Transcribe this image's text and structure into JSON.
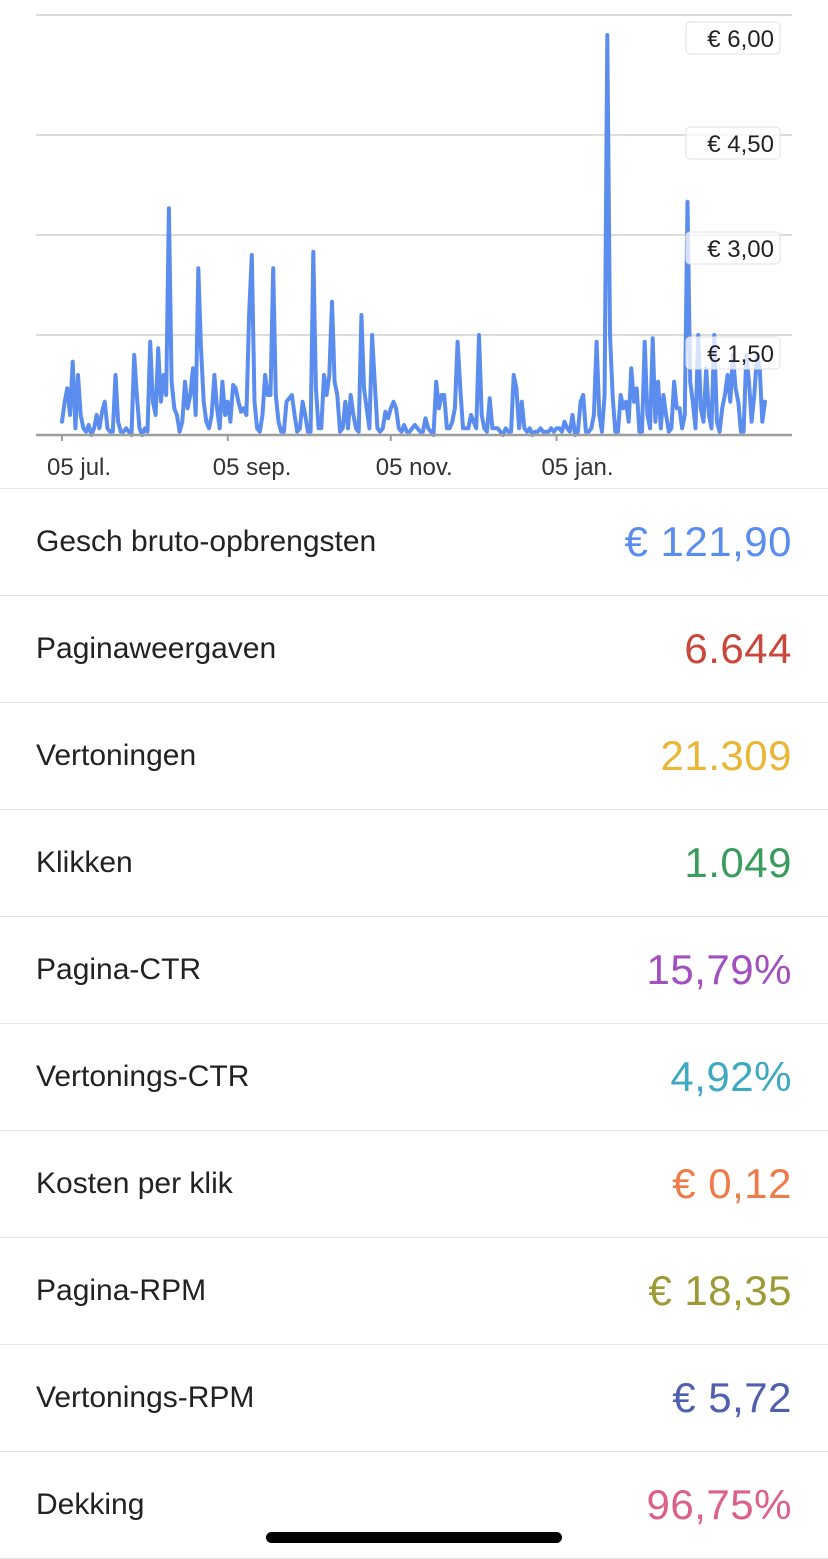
{
  "chart_data": {
    "type": "line",
    "yticks": [
      "€ 6,00",
      "€ 4,50",
      "€ 3,00",
      "€ 1,50"
    ],
    "ytick_values": [
      6.0,
      4.5,
      3.0,
      1.5
    ],
    "xticks": [
      "05 jul.",
      "05 sep.",
      "05 nov.",
      "05 jan."
    ],
    "xtick_index": [
      0,
      62,
      123,
      185
    ],
    "ylim": [
      0,
      6.3
    ],
    "grid": true,
    "series": [
      {
        "color": "#5b8def",
        "values": [
          0.2,
          0.5,
          0.7,
          0.3,
          1.1,
          0.1,
          0.9,
          0.3,
          0.1,
          0.05,
          0.15,
          0.0,
          0.1,
          0.3,
          0.1,
          0.35,
          0.5,
          0.1,
          0.05,
          0.05,
          0.9,
          0.2,
          0.05,
          0.05,
          0.1,
          0.05,
          0.0,
          1.2,
          0.6,
          0.1,
          0.0,
          0.1,
          0.05,
          1.4,
          0.5,
          0.3,
          1.3,
          0.5,
          0.9,
          0.6,
          3.4,
          0.8,
          0.4,
          0.3,
          0.05,
          0.2,
          0.8,
          0.4,
          0.6,
          1.0,
          0.3,
          2.5,
          1.3,
          0.5,
          0.2,
          0.1,
          0.3,
          0.9,
          0.4,
          0.1,
          0.8,
          0.3,
          0.5,
          0.2,
          0.75,
          0.7,
          0.5,
          0.35,
          0.4,
          0.3,
          1.8,
          2.7,
          0.5,
          0.1,
          0.05,
          0.3,
          0.9,
          0.6,
          0.6,
          2.5,
          0.6,
          0.2,
          0.05,
          0.05,
          0.5,
          0.55,
          0.6,
          0.3,
          0.05,
          0.1,
          0.5,
          0.3,
          0.05,
          0.05,
          2.75,
          0.7,
          0.1,
          0.1,
          0.9,
          0.6,
          0.9,
          2.0,
          0.8,
          0.6,
          0.05,
          0.1,
          0.5,
          0.1,
          0.6,
          0.3,
          0.1,
          0.05,
          1.8,
          0.7,
          0.4,
          0.1,
          1.5,
          0.8,
          0.1,
          0.05,
          0.1,
          0.35,
          0.25,
          0.4,
          0.5,
          0.4,
          0.1,
          0.05,
          0.15,
          0.05,
          0.05,
          0.1,
          0.15,
          0.1,
          0.05,
          0.05,
          0.25,
          0.1,
          0.05,
          0.0,
          0.8,
          0.4,
          0.6,
          0.6,
          0.1,
          0.1,
          0.2,
          0.4,
          1.4,
          0.7,
          0.1,
          0.1,
          0.1,
          0.3,
          0.2,
          0.1,
          1.5,
          0.3,
          0.1,
          0.05,
          0.55,
          0.1,
          0.1,
          0.1,
          0.05,
          0.0,
          0.1,
          0.05,
          0.05,
          0.9,
          0.7,
          0.1,
          0.5,
          0.1,
          0.05,
          0.1,
          0.0,
          0.05,
          0.05,
          0.1,
          0.05,
          0.05,
          0.05,
          0.1,
          0.05,
          0.1,
          0.1,
          0.05,
          0.2,
          0.1,
          0.05,
          0.3,
          0.0,
          0.05,
          0.5,
          0.6,
          0.05,
          0.05,
          0.1,
          0.3,
          1.4,
          0.3,
          0.05,
          0.6,
          6.0,
          1.5,
          0.6,
          0.05,
          0.05,
          0.6,
          0.4,
          0.5,
          0.2,
          1.0,
          0.5,
          0.7,
          0.05,
          0.05,
          1.4,
          0.3,
          0.1,
          1.45,
          0.2,
          0.8,
          0.1,
          0.6,
          0.3,
          0.05,
          0.1,
          0.8,
          0.4,
          0.4,
          0.1,
          0.3,
          3.5,
          0.8,
          0.5,
          0.1,
          1.5,
          0.4,
          0.2,
          1.0,
          0.3,
          0.1,
          1.5,
          0.2,
          0.05,
          0.4,
          0.6,
          0.9,
          0.5,
          1.2,
          0.7,
          0.5,
          0.05,
          0.05,
          1.2,
          0.8,
          0.2,
          0.6,
          1.2,
          1.0,
          0.2,
          0.5
        ]
      }
    ]
  },
  "metrics": [
    {
      "label": "Gesch bruto-opbrengsten",
      "value": "€ 121,90",
      "color": "#5b8def"
    },
    {
      "label": "Paginaweergaven",
      "value": "6.644",
      "color": "#c9483b"
    },
    {
      "label": "Vertoningen",
      "value": "21.309",
      "color": "#ebb536"
    },
    {
      "label": "Klikken",
      "value": "1.049",
      "color": "#3a9c5c"
    },
    {
      "label": "Pagina-CTR",
      "value": "15,79%",
      "color": "#a24fbf"
    },
    {
      "label": "Vertonings-CTR",
      "value": "4,92%",
      "color": "#3fa9c2"
    },
    {
      "label": "Kosten per klik",
      "value": "€ 0,12",
      "color": "#ee7b4a"
    },
    {
      "label": "Pagina-RPM",
      "value": "€ 18,35",
      "color": "#9e9a35"
    },
    {
      "label": "Vertonings-RPM",
      "value": "€ 5,72",
      "color": "#5060b0"
    },
    {
      "label": "Dekking",
      "value": "96,75%",
      "color": "#dc6189"
    }
  ]
}
